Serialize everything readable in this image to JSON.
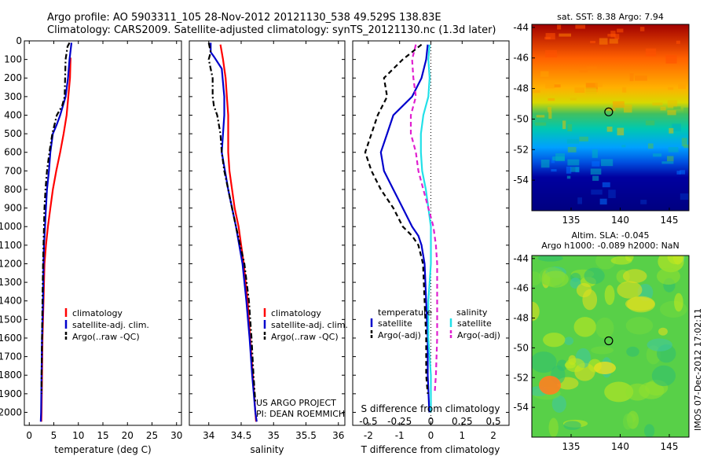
{
  "header": {
    "line1": "Argo profile: AO 5903311_105 28-Nov-2012 20121130_538 49.529S 138.83E",
    "line2": "Climatology: CARS2009. Satellite-adjusted climatology: synTS_20121130.nc (1.3d later)"
  },
  "credit": {
    "line1": "US ARGO PROJECT",
    "line2": "PI: DEAN ROEMMICH"
  },
  "timestamp": "IMOS 07-Dec-2012 17:02:11",
  "colors": {
    "climatology": "#ff0000",
    "satellite": "#0000cc",
    "argo": "#000000",
    "satellite_s": "#22e0e8",
    "argo_s": "#e020d0"
  },
  "chart_data": [
    {
      "id": "temperature",
      "type": "line",
      "xlabel": "temperature (deg C)",
      "xlim": [
        -1,
        31
      ],
      "xticks": [
        0,
        5,
        10,
        15,
        20,
        25,
        30
      ],
      "ylim": [
        2070,
        0
      ],
      "yticks": [
        0,
        100,
        200,
        300,
        400,
        500,
        600,
        700,
        800,
        900,
        1000,
        1100,
        1200,
        1300,
        1400,
        1500,
        1600,
        1700,
        1800,
        1900,
        2000
      ],
      "legend": [
        "climatology",
        "satellite-adj. clim.",
        "Argo(..raw -QC)"
      ],
      "series": [
        {
          "name": "climatology",
          "color": "#ff0000",
          "style": "solid",
          "depth": [
            90,
            200,
            400,
            500,
            600,
            700,
            800,
            900,
            1000,
            1100,
            1200,
            1400,
            1600,
            1800,
            2000,
            2050
          ],
          "values": [
            8.4,
            8.3,
            7.6,
            7.0,
            6.3,
            5.5,
            4.8,
            4.3,
            3.8,
            3.4,
            3.1,
            2.9,
            2.7,
            2.6,
            2.5,
            2.45
          ]
        },
        {
          "name": "satellite-adj. clim.",
          "color": "#0000cc",
          "style": "solid",
          "depth": [
            10,
            100,
            200,
            300,
            400,
            450,
            500,
            600,
            700,
            800,
            900,
            1000,
            1100,
            1200,
            1400,
            1600,
            1800,
            2000,
            2050
          ],
          "values": [
            8.6,
            8.2,
            7.9,
            7.4,
            6.3,
            5.6,
            4.8,
            4.3,
            4.0,
            3.6,
            3.4,
            3.2,
            3.0,
            2.9,
            2.8,
            2.6,
            2.5,
            2.4,
            2.35
          ]
        },
        {
          "name": "Argo(..raw -QC)",
          "color": "#000000",
          "style": "dashdot",
          "depth": [
            10,
            30,
            100,
            200,
            300,
            350,
            400,
            500,
            600,
            700,
            800,
            900,
            1000,
            1100,
            1200,
            1400,
            1600,
            1800,
            1900
          ],
          "values": [
            8.2,
            7.8,
            7.4,
            7.3,
            7.2,
            6.7,
            5.6,
            4.7,
            4.1,
            3.6,
            3.3,
            3.1,
            3.0,
            2.9,
            2.8,
            2.7,
            2.6,
            2.5,
            2.5
          ]
        }
      ]
    },
    {
      "id": "salinity",
      "type": "line",
      "xlabel": "salinity",
      "xlim": [
        33.7,
        36.1
      ],
      "xticks": [
        34,
        34.5,
        35,
        35.5,
        36
      ],
      "ylim": [
        2070,
        0
      ],
      "legend": [
        "climatology",
        "satellite-adj. clim.",
        "Argo(..raw -QC)"
      ],
      "series": [
        {
          "name": "climatology",
          "color": "#ff0000",
          "style": "solid",
          "depth": [
            20,
            100,
            200,
            300,
            400,
            500,
            600,
            700,
            800,
            900,
            1000,
            1200,
            1400,
            1600,
            1800,
            2000,
            2050
          ],
          "values": [
            34.18,
            34.22,
            34.26,
            34.28,
            34.3,
            34.3,
            34.3,
            34.32,
            34.36,
            34.4,
            34.46,
            34.54,
            34.6,
            34.64,
            34.68,
            34.72,
            34.73
          ]
        },
        {
          "name": "satellite-adj. clim.",
          "color": "#0000cc",
          "style": "solid",
          "depth": [
            10,
            60,
            90,
            150,
            300,
            400,
            500,
            600,
            700,
            800,
            900,
            1000,
            1200,
            1400,
            1600,
            1800,
            2000,
            2050
          ],
          "values": [
            34.03,
            34.03,
            34.09,
            34.2,
            34.24,
            34.24,
            34.22,
            34.2,
            34.25,
            34.3,
            34.36,
            34.42,
            34.52,
            34.58,
            34.63,
            34.67,
            34.72,
            34.74
          ]
        },
        {
          "name": "Argo(..raw -QC)",
          "color": "#000000",
          "style": "dashdot",
          "depth": [
            10,
            60,
            100,
            200,
            300,
            350,
            400,
            500,
            600,
            700,
            800,
            900,
            1000,
            1200,
            1400,
            1600,
            1800,
            1950
          ],
          "values": [
            34.0,
            34.03,
            34.0,
            34.06,
            34.06,
            34.08,
            34.13,
            34.18,
            34.2,
            34.24,
            34.3,
            34.36,
            34.42,
            34.55,
            34.62,
            34.66,
            34.69,
            34.72
          ]
        }
      ]
    },
    {
      "id": "difference",
      "type": "line",
      "xlabel": "T difference from climatology",
      "xlabel_top": "S difference from climatology",
      "xlim": [
        -2.5,
        2.5
      ],
      "xticks": [
        -2,
        -1,
        0,
        1,
        2
      ],
      "xticks_top": [
        -0.5,
        -0.25,
        0,
        0.25,
        0.5
      ],
      "ylim": [
        2070,
        0
      ],
      "legend_t_title": "temperature",
      "legend_s_title": "salinity",
      "legend_t": [
        "satellite",
        "Argo(-adj)"
      ],
      "legend_s": [
        "satellite",
        "Argo(-adj)"
      ],
      "series": [
        {
          "name": "T satellite",
          "color": "#0000cc",
          "style": "solid",
          "scale": "T",
          "depth": [
            20,
            100,
            200,
            300,
            400,
            500,
            600,
            700,
            800,
            900,
            1000,
            1050,
            1100,
            1200,
            1400,
            1600,
            1800,
            2000
          ],
          "values": [
            -0.1,
            -0.15,
            -0.3,
            -0.6,
            -1.2,
            -1.4,
            -1.6,
            -1.5,
            -1.2,
            -0.9,
            -0.6,
            -0.4,
            -0.3,
            -0.2,
            -0.15,
            -0.1,
            -0.1,
            -0.05
          ]
        },
        {
          "name": "T Argo(-adj)",
          "color": "#000000",
          "style": "dashed",
          "scale": "T",
          "depth": [
            20,
            60,
            100,
            200,
            300,
            400,
            500,
            600,
            700,
            800,
            900,
            1000,
            1050,
            1100,
            1200,
            1400,
            1600,
            1800,
            1900
          ],
          "values": [
            -0.3,
            -0.6,
            -0.9,
            -1.5,
            -1.4,
            -1.7,
            -1.9,
            -2.1,
            -1.9,
            -1.6,
            -1.2,
            -0.9,
            -0.6,
            -0.4,
            -0.25,
            -0.2,
            -0.15,
            -0.15,
            -0.1
          ]
        },
        {
          "name": "S satellite",
          "color": "#22e0e8",
          "style": "solid",
          "scale": "S",
          "depth": [
            20,
            100,
            200,
            300,
            400,
            500,
            600,
            700,
            800,
            900,
            1000,
            1200,
            1400,
            1600,
            1800,
            2000
          ],
          "values": [
            -0.01,
            -0.02,
            -0.01,
            -0.02,
            -0.06,
            -0.08,
            -0.08,
            -0.07,
            -0.04,
            -0.02,
            0.0,
            0.0,
            -0.02,
            -0.02,
            0.0,
            0.0
          ]
        },
        {
          "name": "S Argo(-adj)",
          "color": "#e020d0",
          "style": "dashed",
          "scale": "S",
          "depth": [
            20,
            100,
            200,
            300,
            400,
            500,
            600,
            700,
            800,
            900,
            1000,
            1100,
            1200,
            1400,
            1600,
            1800,
            1900
          ],
          "values": [
            -0.12,
            -0.15,
            -0.14,
            -0.12,
            -0.16,
            -0.16,
            -0.12,
            -0.1,
            -0.06,
            -0.02,
            0.02,
            0.04,
            0.05,
            0.05,
            0.05,
            0.04,
            0.03
          ]
        }
      ]
    },
    {
      "id": "sst_map",
      "type": "heatmap",
      "title": "sat. SST: 8.38 Argo: 7.94",
      "xticks": [
        135,
        140,
        145
      ],
      "yticks": [
        -44,
        -46,
        -48,
        -50,
        -52,
        -54
      ],
      "xlim": [
        131,
        147
      ],
      "ylim": [
        -56,
        -43.8
      ],
      "marker": {
        "lon": 138.83,
        "lat": -49.53
      },
      "colormap": "jet"
    },
    {
      "id": "sla_map",
      "type": "heatmap",
      "title": "Altim. SLA: -0.045",
      "subtitle": "Argo h1000: -0.089 h2000: NaN",
      "xticks": [
        135,
        140,
        145
      ],
      "yticks": [
        -44,
        -46,
        -48,
        -50,
        -52,
        -54
      ],
      "xlim": [
        131,
        147
      ],
      "ylim": [
        -56,
        -43.8
      ],
      "marker": {
        "lon": 138.83,
        "lat": -49.53
      },
      "colormap": "jet"
    }
  ]
}
